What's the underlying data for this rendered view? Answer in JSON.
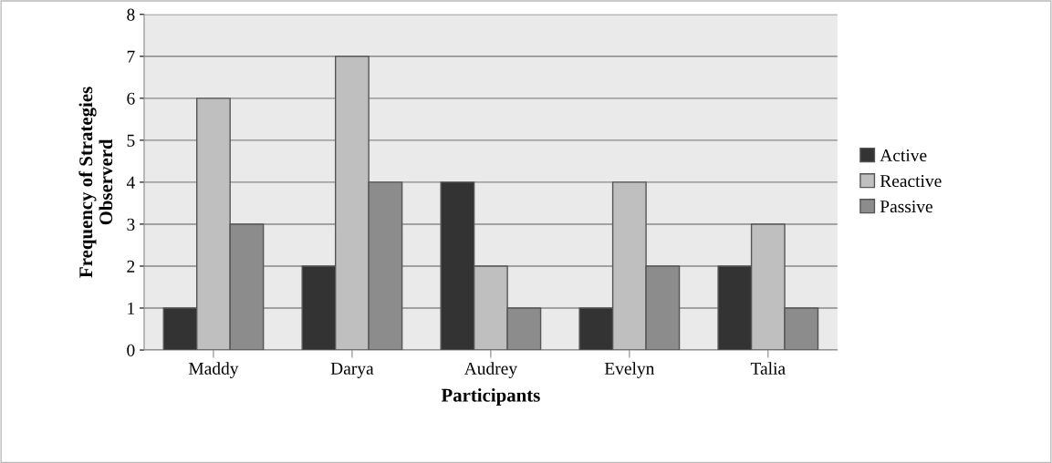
{
  "chart_data": {
    "type": "bar",
    "xlabel": "Participants",
    "ylabel": "Frequency of Strategies\nObserverd",
    "categories": [
      "Maddy",
      "Darya",
      "Audrey",
      "Evelyn",
      "Talia"
    ],
    "series": [
      {
        "name": "Active",
        "color": "#333333",
        "values": [
          1,
          2,
          4,
          1,
          2
        ]
      },
      {
        "name": "Reactive",
        "color": "#bfbfbf",
        "values": [
          6,
          7,
          2,
          4,
          3
        ]
      },
      {
        "name": "Passive",
        "color": "#8c8c8c",
        "values": [
          3,
          4,
          1,
          2,
          1
        ]
      }
    ],
    "ylim": [
      0,
      8
    ],
    "yticks": [
      0,
      1,
      2,
      3,
      4,
      5,
      6,
      7,
      8
    ],
    "grid": "y",
    "legend": "right"
  }
}
